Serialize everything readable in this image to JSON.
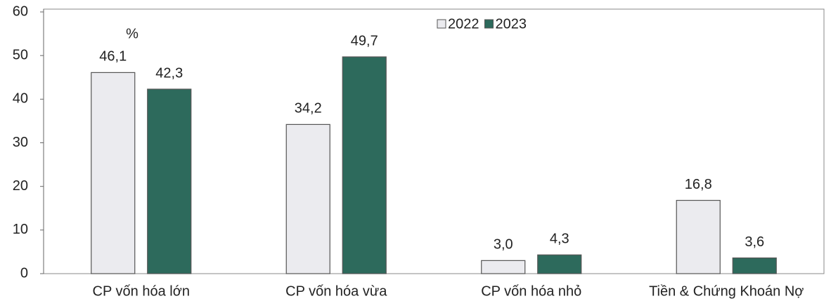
{
  "chart_data": {
    "type": "bar",
    "annotations": [
      "%"
    ],
    "categories": [
      "CP vốn hóa lớn",
      "CP vốn hóa vừa",
      "CP vốn hóa nhỏ",
      "Tiền & Chứng Khoán Nợ"
    ],
    "series": [
      {
        "name": "2022",
        "color": "#ebebef",
        "values": [
          46.1,
          34.2,
          3.0,
          16.8
        ],
        "value_labels": [
          "46,1",
          "34,2",
          "3,0",
          "16,8"
        ]
      },
      {
        "name": "2023",
        "color": "#2d6a5c",
        "values": [
          42.3,
          49.7,
          4.3,
          3.6
        ],
        "value_labels": [
          "42,3",
          "49,7",
          "4,3",
          "3,6"
        ]
      }
    ],
    "ylim": [
      0,
      60
    ],
    "yticks": [
      0,
      10,
      20,
      30,
      40,
      50,
      60
    ],
    "grid": false,
    "legend": "top"
  }
}
